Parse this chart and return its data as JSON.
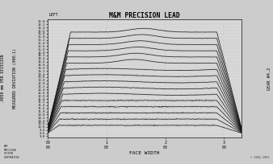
{
  "title": "M&M PRECISION LEAD",
  "xlabel": "FACE WIDTH",
  "ylabel_line1": ".0050 mm PER DIVISION",
  "ylabel_line2": "MEASURED DEVIATION (400:1)",
  "right_label": "GEAR #4.2",
  "top_label": "LEFT",
  "bg_color": "#cccccc",
  "plot_bg": "#d8d8d8",
  "line_color": "#111111",
  "grid_color": "#aaaaaa",
  "n_traces": 16,
  "y_tick_labels": [
    "9-8",
    "9-6",
    "9-4",
    "10-8",
    "10-6",
    "10-4",
    "10-2",
    "10-0",
    "11-8",
    "11-6",
    "11-4",
    "11-2",
    "11-0",
    "12-8",
    "12-6",
    "12-4",
    "12-2",
    "12-0",
    "13-8",
    "13-6",
    "13-4",
    "13-2",
    "13-0",
    "14-8",
    "14-6",
    "14-4",
    "14-2",
    "14-0",
    "15-8",
    "15-6",
    "15-4",
    "15-2",
    "15-0",
    "16-8",
    "16-6",
    "16-4",
    "16-2",
    "16-0"
  ],
  "x_tick_positions": [
    0,
    1.0,
    2.0,
    3.0
  ],
  "x_tick_labels": [
    "00\n00",
    "1\n00",
    "2\n00",
    "3\n00"
  ],
  "xmin": 0.0,
  "xmax": 3.3,
  "ymin": -1,
  "ymax": 37,
  "figsize": [
    3.38,
    2.04
  ],
  "dpi": 100
}
